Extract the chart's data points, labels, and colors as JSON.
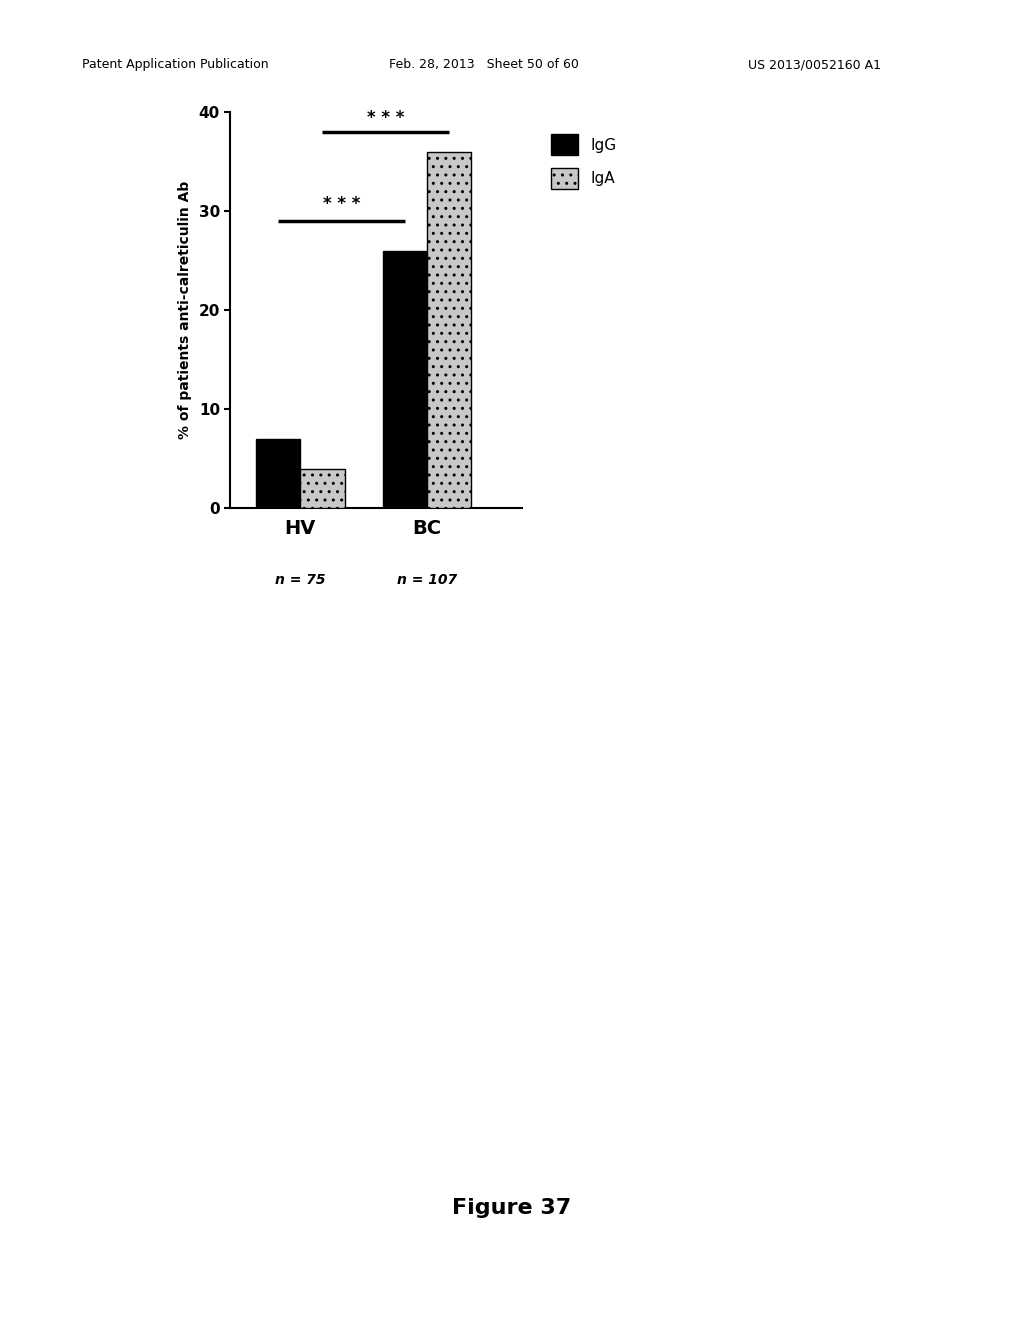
{
  "groups": [
    "HV",
    "BC"
  ],
  "group_labels": [
    "HV",
    "BC"
  ],
  "n_labels": [
    "n = 75",
    "n = 107"
  ],
  "IgG_values": [
    7.0,
    26.0
  ],
  "IgA_values": [
    4.0,
    36.0
  ],
  "IgG_color": "#000000",
  "IgA_hatch": "..",
  "IgA_facecolor": "#c8c8c8",
  "ylabel": "% of patients anti-calreticulin Ab",
  "ylim": [
    0,
    40
  ],
  "yticks": [
    0,
    10,
    20,
    30,
    40
  ],
  "bar_width": 0.35,
  "significance_hv": "* * *",
  "significance_bc": "* * *",
  "figure_label": "Figure 37",
  "header_left": "Patent Application Publication",
  "header_center": "Feb. 28, 2013   Sheet 50 of 60",
  "header_right": "US 2013/0052160 A1",
  "background_color": "#ffffff"
}
